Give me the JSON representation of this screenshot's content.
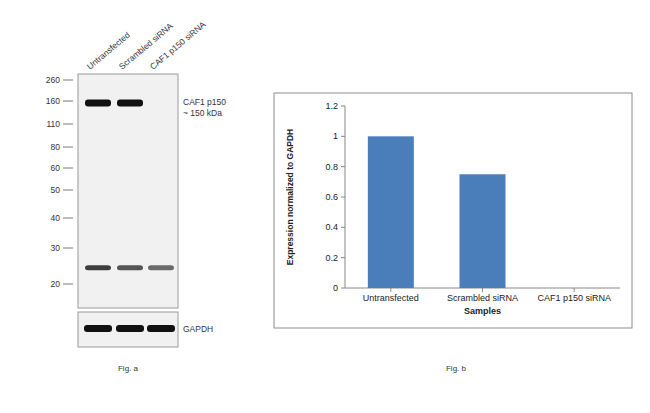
{
  "figure_a": {
    "caption": "Fig. a",
    "lanes": [
      "Untransfected",
      "Scrambled siRNA",
      "CAF1 p150 siRNA"
    ],
    "markers": [
      260,
      160,
      110,
      80,
      60,
      50,
      40,
      30,
      20
    ],
    "target_label": "CAF1 p150",
    "target_size": "~ 150 kDa",
    "bands": [
      {
        "kda": 155,
        "lanes": [
          1,
          1,
          0
        ]
      },
      {
        "kda": 24,
        "lanes": [
          0.8,
          0.7,
          0.6
        ]
      }
    ],
    "loading_label": "GAPDH",
    "loading_lanes": [
      1,
      1,
      1
    ]
  },
  "chart_data": {
    "type": "bar",
    "caption": "Fig. b",
    "x_label": "Samples",
    "y_label": "Expression normalized to GAPDH",
    "categories": [
      "Untransfected",
      "Scrambled siRNA",
      "CAF1 p150 siRNA"
    ],
    "values": [
      1,
      0.75,
      0
    ],
    "color": "#4a7ebb",
    "ylim": [
      0,
      1.2
    ],
    "yticks": [
      0,
      0.2,
      0.4,
      0.6,
      0.8,
      1,
      1.2
    ],
    "grid": false
  }
}
